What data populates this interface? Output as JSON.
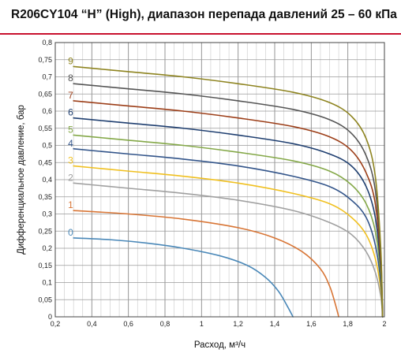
{
  "title": "R206CY104 “H” (High), диапазон перепада давлений 25 – 60 кПа",
  "chart_data": {
    "type": "line",
    "title": "R206CY104 “H” (High), диапазон перепада давлений 25 – 60 кПа",
    "xlabel": "Расход, м³/ч",
    "ylabel": "Дифференциальное давление, бар",
    "xlim": [
      0.2,
      2.0
    ],
    "ylim": [
      0,
      0.8
    ],
    "x_ticks": [
      "0,2",
      "0,4",
      "0,6",
      "0,8",
      "1",
      "1,2",
      "1,4",
      "1,6",
      "1,8",
      "2"
    ],
    "y_ticks": [
      "0",
      "0,05",
      "0,1",
      "0,15",
      "0,2",
      "0,25",
      "0,3",
      "0,35",
      "0,4",
      "0,45",
      "0,5",
      "0,55",
      "0,6",
      "0,65",
      "0,7",
      "0,75",
      "0,8"
    ],
    "grid": true,
    "legend": "inline labels at left end of each curve",
    "series": [
      {
        "name": "0",
        "color": "#4a88b8",
        "x": [
          0.3,
          0.5,
          0.7,
          0.9,
          1.1,
          1.25,
          1.35,
          1.42,
          1.47,
          1.5
        ],
        "y": [
          0.23,
          0.225,
          0.215,
          0.2,
          0.178,
          0.15,
          0.115,
          0.075,
          0.03,
          0.0
        ]
      },
      {
        "name": "1",
        "color": "#d87535",
        "x": [
          0.3,
          0.6,
          0.9,
          1.2,
          1.4,
          1.55,
          1.65,
          1.7,
          1.73,
          1.75
        ],
        "y": [
          0.31,
          0.3,
          0.285,
          0.26,
          0.23,
          0.19,
          0.14,
          0.09,
          0.04,
          0.0
        ]
      },
      {
        "name": "2",
        "color": "#a0a0a0",
        "x": [
          0.3,
          0.6,
          0.9,
          1.2,
          1.5,
          1.7,
          1.82,
          1.9,
          1.95,
          1.98,
          1.99
        ],
        "y": [
          0.39,
          0.375,
          0.36,
          0.34,
          0.31,
          0.275,
          0.24,
          0.19,
          0.13,
          0.06,
          0.0
        ]
      },
      {
        "name": "3",
        "color": "#f0c020",
        "x": [
          0.3,
          0.6,
          0.9,
          1.2,
          1.5,
          1.7,
          1.82,
          1.9,
          1.95,
          1.98,
          1.99
        ],
        "y": [
          0.44,
          0.425,
          0.41,
          0.39,
          0.36,
          0.33,
          0.29,
          0.24,
          0.17,
          0.08,
          0.0
        ]
      },
      {
        "name": "4",
        "color": "#33558a",
        "x": [
          0.3,
          0.6,
          0.9,
          1.2,
          1.5,
          1.7,
          1.82,
          1.9,
          1.95,
          1.98,
          1.99
        ],
        "y": [
          0.49,
          0.475,
          0.46,
          0.44,
          0.41,
          0.38,
          0.34,
          0.29,
          0.21,
          0.1,
          0.0
        ]
      },
      {
        "name": "5",
        "color": "#84a848",
        "x": [
          0.3,
          0.6,
          0.9,
          1.2,
          1.5,
          1.7,
          1.82,
          1.9,
          1.95,
          1.98,
          1.99
        ],
        "y": [
          0.53,
          0.515,
          0.5,
          0.48,
          0.455,
          0.425,
          0.385,
          0.33,
          0.25,
          0.12,
          0.0
        ]
      },
      {
        "name": "6",
        "color": "#1f3f70",
        "x": [
          0.3,
          0.6,
          0.9,
          1.2,
          1.5,
          1.7,
          1.82,
          1.9,
          1.95,
          1.98,
          1.99
        ],
        "y": [
          0.58,
          0.565,
          0.55,
          0.53,
          0.505,
          0.475,
          0.44,
          0.38,
          0.29,
          0.14,
          0.0
        ]
      },
      {
        "name": "7",
        "color": "#9c3e18",
        "x": [
          0.3,
          0.6,
          0.9,
          1.2,
          1.5,
          1.7,
          1.82,
          1.9,
          1.95,
          1.98,
          1.99
        ],
        "y": [
          0.63,
          0.615,
          0.6,
          0.58,
          0.555,
          0.525,
          0.485,
          0.42,
          0.33,
          0.16,
          0.0
        ]
      },
      {
        "name": "8",
        "color": "#555555",
        "x": [
          0.3,
          0.6,
          0.9,
          1.2,
          1.5,
          1.7,
          1.82,
          1.9,
          1.95,
          1.98,
          1.99
        ],
        "y": [
          0.68,
          0.665,
          0.65,
          0.63,
          0.605,
          0.575,
          0.535,
          0.47,
          0.37,
          0.18,
          0.0
        ]
      },
      {
        "name": "9",
        "color": "#8e8420",
        "x": [
          0.3,
          0.6,
          0.9,
          1.2,
          1.5,
          1.7,
          1.82,
          1.9,
          1.95,
          1.98,
          1.99
        ],
        "y": [
          0.73,
          0.715,
          0.7,
          0.68,
          0.655,
          0.625,
          0.585,
          0.52,
          0.41,
          0.2,
          0.0
        ]
      }
    ]
  }
}
